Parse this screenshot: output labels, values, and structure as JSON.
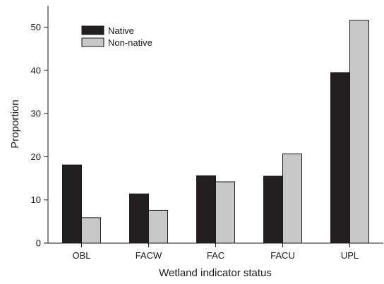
{
  "chart_data": {
    "type": "bar",
    "xlabel": "Wetland indicator status",
    "ylabel": "Proportion",
    "categories": [
      "OBL",
      "FACW",
      "FAC",
      "FACU",
      "UPL"
    ],
    "series": [
      {
        "name": "Native",
        "values": [
          18.1,
          11.4,
          15.6,
          15.5,
          39.5
        ],
        "color": "#231f20"
      },
      {
        "name": "Non-native",
        "values": [
          5.9,
          7.6,
          14.2,
          20.7,
          51.6
        ],
        "color": "#c8c8c8"
      }
    ],
    "ylim": [
      0,
      55
    ],
    "yticks": [
      0,
      10,
      20,
      30,
      40,
      50
    ],
    "grid": false,
    "legend_position": "top-left"
  }
}
